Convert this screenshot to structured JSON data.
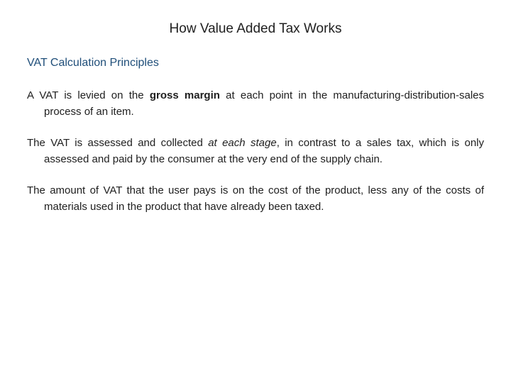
{
  "colors": {
    "background": "#ffffff",
    "title_color": "#202020",
    "subtitle_color": "#1f4e79",
    "body_color": "#202020"
  },
  "typography": {
    "title_fontsize": 19,
    "subtitle_fontsize": 16,
    "body_fontsize": 15,
    "line_height": 1.5,
    "font_family": "Arial"
  },
  "title": "How Value Added Tax Works",
  "subtitle": "VAT Calculation Principles",
  "paragraphs": {
    "p1": {
      "pre": "A VAT is levied on the ",
      "bold": "gross margin",
      "post": " at each point in the manufacturing-distribution-sales process of an item."
    },
    "p2": {
      "pre": "The VAT is assessed and collected ",
      "ital": "at each stage",
      "post": ", in contrast to a sales tax, which is only assessed and paid by the consumer at the very end of the supply chain."
    },
    "p3": {
      "text": "The amount of VAT that the user pays is on the cost of the product, less any of the costs of materials used in the product that have already been taxed."
    }
  }
}
